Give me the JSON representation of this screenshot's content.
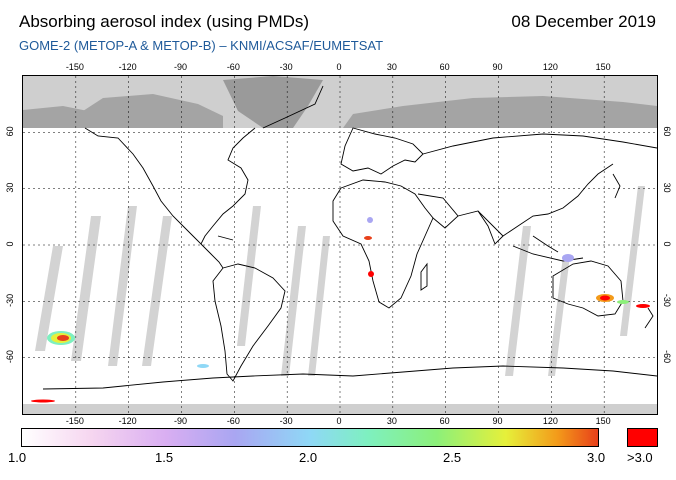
{
  "header": {
    "title": "Absorbing aerosol index (using PMDs)",
    "date": "08 December 2019",
    "subtitle": "GOME-2 (METOP-A & METOP-B)  –  KNMI/ACSAF/EUMETSAT"
  },
  "map": {
    "lon_ticks_top": [
      "-150",
      "-120",
      "-90",
      "-60",
      "-30",
      "0",
      "30",
      "60",
      "90",
      "120",
      "150"
    ],
    "lon_ticks_bottom": [
      "-150",
      "-120",
      "-90",
      "-60",
      "-30",
      "0",
      "30",
      "60",
      "90",
      "120",
      "150"
    ],
    "lat_ticks_left": [
      "60",
      "30",
      "0",
      "-30",
      "-60"
    ],
    "lat_ticks_right": [
      "60",
      "30",
      "0",
      "-30",
      "-60"
    ],
    "lon_values": [
      -150,
      -120,
      -90,
      -60,
      -30,
      0,
      30,
      60,
      90,
      120,
      150
    ],
    "lat_values": [
      60,
      30,
      0,
      -30,
      -60
    ],
    "lon_range": [
      -180,
      180
    ],
    "lat_range": [
      -90,
      90
    ],
    "grid": true,
    "colors": {
      "no_data": "#c8c8c8",
      "land_mask": "#a0a0a0",
      "coastline": "#000000",
      "grid": "#000000"
    }
  },
  "colorbar": {
    "labels": [
      "1.0",
      "1.5",
      "2.0",
      "2.5",
      "3.0"
    ],
    "values": [
      1.0,
      1.5,
      2.0,
      2.5,
      3.0
    ],
    "over_label": ">3.0",
    "over_color": "#ff0000",
    "range": [
      1.0,
      3.0
    ]
  }
}
